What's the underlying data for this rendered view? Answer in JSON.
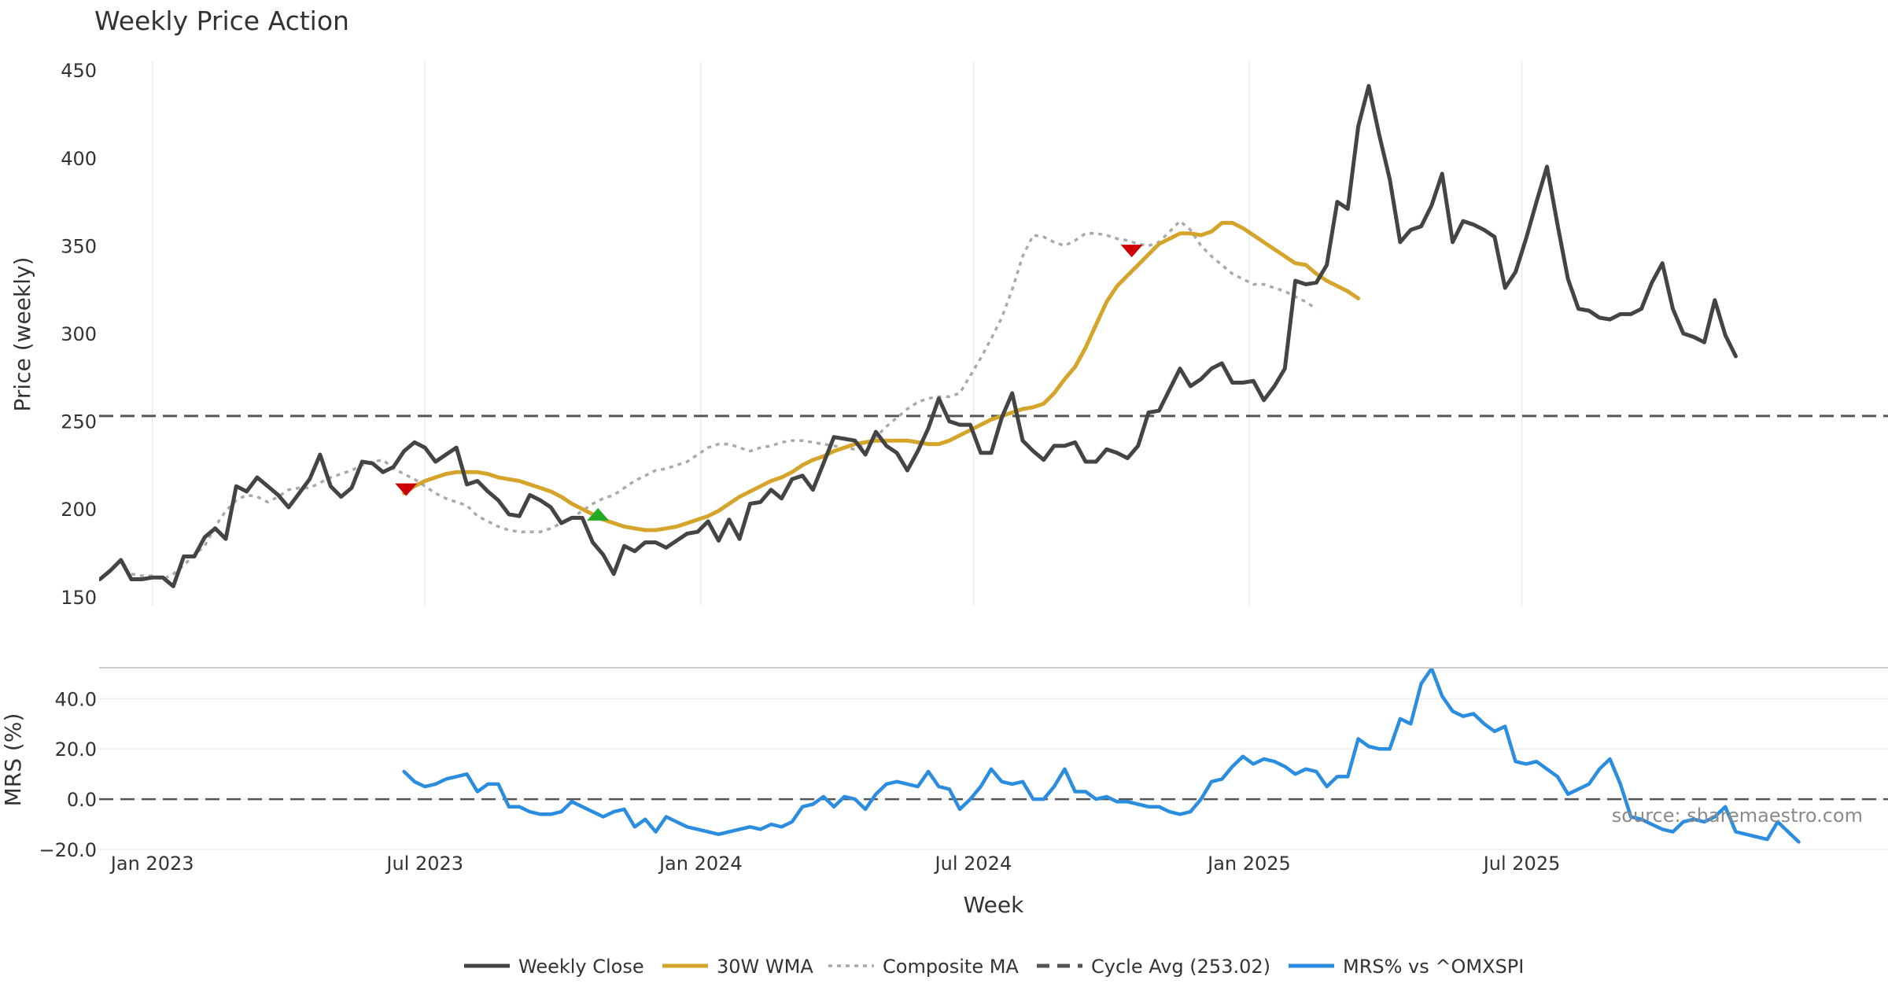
{
  "chart_data": {
    "type": "line",
    "title": "Weekly Price Action",
    "source": "source: sharemaestro.com",
    "xlabel": "Week",
    "x_ticks": [
      {
        "label": "Jan 2023",
        "week": 5
      },
      {
        "label": "Jul 2023",
        "week": 31
      },
      {
        "label": "Jan 2024",
        "week": 57.3
      },
      {
        "label": "Jul 2024",
        "week": 83.3
      },
      {
        "label": "Jan 2025",
        "week": 109.6
      },
      {
        "label": "Jul 2025",
        "week": 135.6
      }
    ],
    "price_panel": {
      "ylabel": "Price (weekly)",
      "ylim": [
        145,
        455
      ],
      "y_ticks": [
        150,
        200,
        250,
        300,
        350,
        400,
        450
      ],
      "series": [
        {
          "name": "Weekly Close",
          "color": "#444444",
          "style": "solid",
          "start": 0,
          "values": [
            160,
            165,
            171,
            160,
            160,
            161,
            161,
            156,
            173,
            173,
            184,
            189,
            183,
            213,
            210,
            218,
            213,
            208,
            201,
            209,
            217,
            231,
            213,
            207,
            212,
            227,
            226,
            221,
            224,
            233,
            238,
            235,
            227,
            231,
            235,
            214,
            216,
            210,
            205,
            197,
            196,
            208,
            205,
            201,
            192,
            195,
            195,
            181,
            174,
            163,
            179,
            176,
            181,
            181,
            178,
            182,
            186,
            187,
            193,
            182,
            194,
            183,
            203,
            204,
            211,
            206,
            217,
            219,
            211,
            226,
            241,
            240,
            239,
            231,
            244,
            236,
            232,
            222,
            233,
            246,
            263,
            250,
            248,
            248,
            232,
            232,
            252,
            266,
            239,
            233,
            228,
            236,
            236,
            238,
            227,
            227,
            234,
            232,
            229,
            236,
            255,
            256,
            268,
            280,
            270,
            274,
            280,
            283,
            272,
            272,
            273,
            262,
            270,
            280,
            330,
            328,
            329,
            339,
            375,
            371,
            418,
            441,
            413,
            388,
            352,
            359,
            361,
            373,
            391,
            352,
            364,
            362,
            359,
            355,
            326,
            335,
            354,
            375,
            395,
            362,
            331,
            314,
            313,
            309,
            308,
            311,
            311,
            314,
            329,
            340,
            314,
            300,
            298,
            295,
            319,
            299,
            287
          ]
        },
        {
          "name": "30W WMA",
          "color": "#d4a52a",
          "style": "solid",
          "start": 29,
          "values": [
            209,
            213,
            216,
            218,
            220,
            221,
            221,
            221,
            220,
            218,
            217,
            216,
            214,
            212,
            210,
            207,
            203,
            200,
            197,
            194,
            192,
            190,
            189,
            188,
            188,
            189,
            190,
            192,
            194,
            196,
            199,
            203,
            207,
            210,
            213,
            216,
            218,
            221,
            225,
            228,
            230,
            233,
            235,
            237,
            238,
            239,
            239,
            239,
            239,
            238,
            237,
            237,
            239,
            242,
            245,
            248,
            251,
            253,
            255,
            257,
            258,
            260,
            266,
            274,
            281,
            292,
            305,
            318,
            327,
            333,
            339,
            345,
            351,
            354,
            357,
            357,
            356,
            358,
            363,
            363,
            360,
            356,
            352,
            348,
            344,
            340,
            339,
            334,
            330,
            327,
            324,
            320
          ]
        },
        {
          "name": "Composite MA",
          "color": "#aaaaaa",
          "style": "dotted",
          "start": 3,
          "values": [
            163,
            162,
            162,
            160,
            163,
            168,
            174,
            179,
            190,
            199,
            205,
            208,
            207,
            204,
            207,
            211,
            212,
            212,
            215,
            218,
            220,
            222,
            225,
            227,
            228,
            223,
            220,
            217,
            213,
            209,
            206,
            204,
            202,
            196,
            193,
            190,
            188,
            187,
            187,
            187,
            189,
            192,
            195,
            199,
            203,
            206,
            208,
            212,
            216,
            219,
            222,
            223,
            225,
            227,
            231,
            235,
            237,
            237,
            235,
            233,
            235,
            236,
            238,
            239,
            239,
            238,
            237,
            236,
            235,
            234,
            237,
            241,
            247,
            252,
            257,
            261,
            263,
            264,
            264,
            266,
            276,
            286,
            297,
            309,
            325,
            344,
            356,
            355,
            352,
            350,
            353,
            357,
            357,
            356,
            354,
            353,
            351,
            350,
            352,
            358,
            364,
            359,
            350,
            344,
            339,
            334,
            331,
            328,
            328,
            326,
            324,
            321,
            318,
            314
          ]
        },
        {
          "name": "Cycle Avg (253.02)",
          "color": "#555555",
          "style": "dashed",
          "constant": 253.02
        }
      ],
      "markers": [
        {
          "type": "sell",
          "week": 29.2,
          "price": 211,
          "color": "#cc0000"
        },
        {
          "type": "buy",
          "week": 47.5,
          "price": 197,
          "color": "#22aa22"
        },
        {
          "type": "sell",
          "week": 98.4,
          "price": 347,
          "color": "#cc0000"
        }
      ]
    },
    "mrs_panel": {
      "ylabel": "MRS (%)",
      "ylim": [
        -20,
        52
      ],
      "y_ticks": [
        {
          "value": 40,
          "label": "40.0"
        },
        {
          "value": 20,
          "label": "20.0"
        },
        {
          "value": 0,
          "label": "0.0"
        },
        {
          "value": -20,
          "label": "−20.0"
        }
      ],
      "series": [
        {
          "name": "MRS% vs ^OMXSPI",
          "color": "#2b8de0",
          "style": "solid",
          "start": 29,
          "values": [
            11,
            7,
            5,
            6,
            8,
            9,
            10,
            3,
            6,
            6,
            -3,
            -3,
            -5,
            -6,
            -6,
            -5,
            -1,
            -3,
            -5,
            -7,
            -5,
            -4,
            -11,
            -8,
            -13,
            -7,
            -9,
            -11,
            -12,
            -13,
            -14,
            -13,
            -12,
            -11,
            -12,
            -10,
            -11,
            -9,
            -3,
            -2,
            1,
            -3,
            1,
            0,
            -4,
            2,
            6,
            7,
            6,
            5,
            11,
            5,
            4,
            -4,
            0,
            5,
            12,
            7,
            6,
            7,
            0,
            0,
            5,
            12,
            3,
            3,
            0,
            1,
            -1,
            -1,
            -2,
            -3,
            -3,
            -5,
            -6,
            -5,
            0,
            7,
            8,
            13,
            17,
            14,
            16,
            15,
            13,
            10,
            12,
            11,
            5,
            9,
            9,
            24,
            21,
            20,
            20,
            32,
            30,
            46,
            52,
            41,
            35,
            33,
            34,
            30,
            27,
            29,
            15,
            14,
            15,
            12,
            9,
            2,
            4,
            6,
            12,
            16,
            6,
            -7,
            -8,
            -10,
            -12,
            -13,
            -9,
            -8,
            -9,
            -7,
            -3,
            -13,
            -14,
            -15,
            -16,
            -9,
            -13,
            -17
          ]
        },
        {
          "name": "zero",
          "color": "#555555",
          "style": "dashed",
          "constant": 0
        }
      ]
    },
    "legend": [
      {
        "label": "Weekly Close",
        "color": "#444444",
        "style": "solid"
      },
      {
        "label": "30W WMA",
        "color": "#d4a52a",
        "style": "solid"
      },
      {
        "label": "Composite MA",
        "color": "#aaaaaa",
        "style": "dotted"
      },
      {
        "label": "Cycle Avg (253.02)",
        "color": "#555555",
        "style": "dashed"
      },
      {
        "label": "MRS% vs ^OMXSPI",
        "color": "#2b8de0",
        "style": "solid"
      }
    ]
  }
}
